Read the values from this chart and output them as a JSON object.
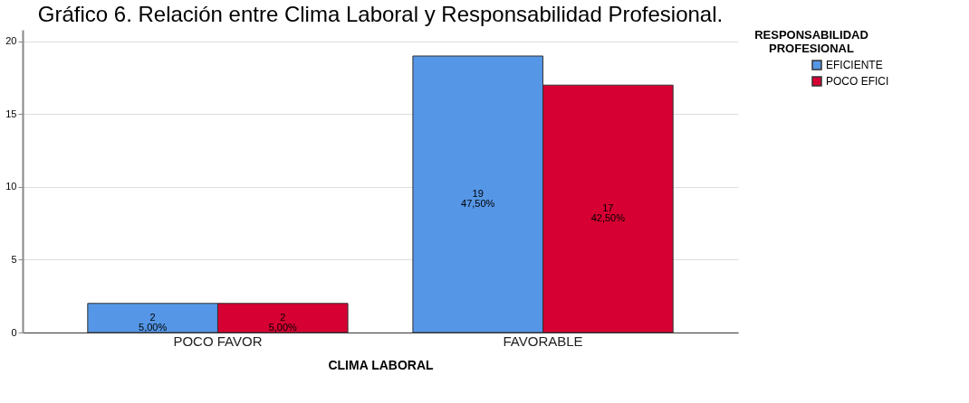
{
  "chart_data": {
    "type": "bar",
    "title": "Gráfico 6. Relación entre Clima Laboral  y Responsabilidad Profesional.",
    "xlabel": "CLIMA LABORAL",
    "legend_title": "RESPONSABILIDAD PROFESIONAL",
    "categories": [
      "POCO FAVOR",
      "FAVORABLE"
    ],
    "series": [
      {
        "name": "EFICIENTE",
        "color": "#5596e6",
        "values": [
          2,
          19
        ],
        "value_labels": [
          "2\n5,00%",
          "19\n47,50%"
        ]
      },
      {
        "name": "POCO EFICI",
        "color": "#d60032",
        "values": [
          2,
          17
        ],
        "value_labels": [
          "2\n5,00%",
          "17\n42,50%"
        ]
      }
    ],
    "ylim": [
      0,
      20.8
    ],
    "yticks": [
      0,
      5,
      10,
      15,
      20
    ],
    "grid": "y",
    "legend": "top right"
  }
}
